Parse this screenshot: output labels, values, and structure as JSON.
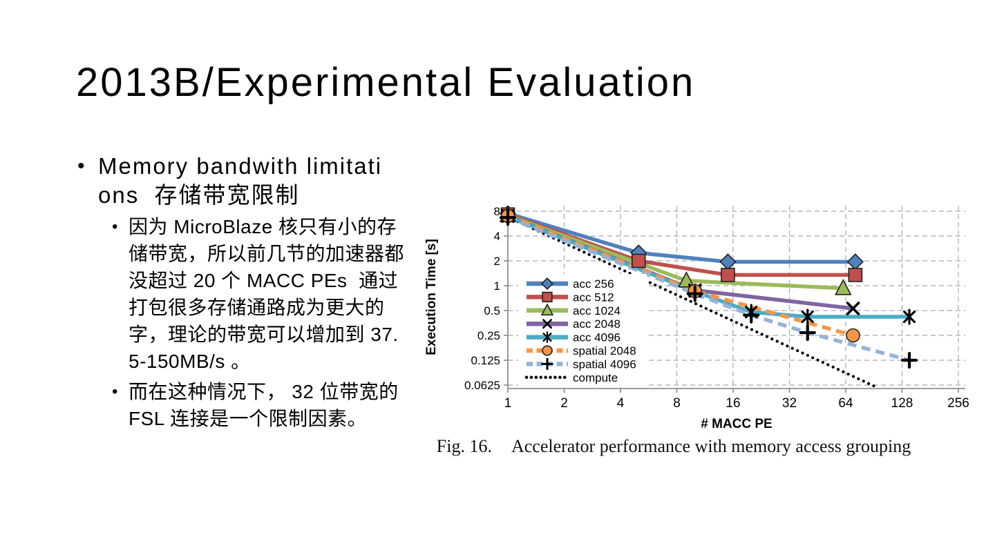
{
  "slide": {
    "title": "2013B/Experimental Evaluation",
    "bullet_char": "•"
  },
  "content": {
    "bullet1_text": "Memory bandwith limitations  存储带宽限制",
    "sub1": "因为 MicroBlaze 核只有小的存储带宽，所以前几节的加速器都没超过 20 个 MACC PEs  通过打包很多存储通路成为更大的字，理论的带宽可以增加到 37.5-150MB/s 。",
    "sub2": "而在这种情况下， 32 位带宽的 FSL 连接是一个限制因素。"
  },
  "figure": {
    "caption_label": "Fig. 16.",
    "caption_text": "Accelerator performance with memory access grouping"
  },
  "chart_data": {
    "type": "line",
    "title": "",
    "xlabel": "# MACC PE",
    "ylabel": "Execution Time [s]",
    "x_scale": "log2",
    "y_scale": "log2",
    "xlim": [
      1,
      256
    ],
    "ylim": [
      0.0625,
      8
    ],
    "grid": "dashed",
    "legend_position": "inside-left",
    "x_ticks": [
      1,
      2,
      4,
      8,
      16,
      32,
      64,
      128,
      256
    ],
    "x_tick_labels": [
      "1",
      "2",
      "4",
      "8",
      "16",
      "32",
      "64",
      "128",
      "256"
    ],
    "y_ticks": [
      8,
      4,
      2,
      1,
      0.5,
      0.25,
      0.125,
      0.0625
    ],
    "y_tick_labels": [
      "8",
      "4",
      "2",
      "1",
      "0.5",
      "0.25",
      "0.125",
      "0.0625"
    ],
    "colors": {
      "acc256": "#4F81BD",
      "acc512": "#C0504D",
      "acc1024": "#9BBB59",
      "acc2048": "#8064A2",
      "acc4096": "#4BACC6",
      "spatial2048": "#F79646",
      "spatial4096": "#95B3D7",
      "compute": "#000000"
    },
    "series": [
      {
        "name": "acc 256",
        "color": "#4F81BD",
        "style": "solid",
        "marker": "diamond",
        "points": [
          [
            1,
            7.5
          ],
          [
            5,
            2.5
          ],
          [
            15,
            1.95
          ],
          [
            72,
            1.95
          ]
        ]
      },
      {
        "name": "acc 512",
        "color": "#C0504D",
        "style": "solid",
        "marker": "square",
        "points": [
          [
            1,
            7.3
          ],
          [
            5,
            2.0
          ],
          [
            15,
            1.35
          ],
          [
            72,
            1.35
          ]
        ]
      },
      {
        "name": "acc 1024",
        "color": "#9BBB59",
        "style": "solid",
        "marker": "triangle",
        "points": [
          [
            1,
            7.1
          ],
          [
            9,
            1.15
          ],
          [
            62,
            0.93
          ]
        ]
      },
      {
        "name": "acc 2048",
        "color": "#8064A2",
        "style": "solid",
        "marker": "x",
        "points": [
          [
            1,
            7.0
          ],
          [
            10,
            0.88
          ],
          [
            70,
            0.53
          ]
        ]
      },
      {
        "name": "acc 4096",
        "color": "#4BACC6",
        "style": "solid",
        "marker": "star",
        "points": [
          [
            1,
            6.9
          ],
          [
            10,
            0.85
          ],
          [
            20,
            0.48
          ],
          [
            40,
            0.42
          ],
          [
            140,
            0.42
          ]
        ]
      },
      {
        "name": "spatial 2048",
        "color": "#F79646",
        "style": "dashed",
        "marker": "circle",
        "points": [
          [
            1,
            7.0
          ],
          [
            10,
            0.86
          ],
          [
            70,
            0.25
          ]
        ]
      },
      {
        "name": "spatial 4096",
        "color": "#95B3D7",
        "style": "dashed",
        "marker": "plus",
        "points": [
          [
            1,
            6.7
          ],
          [
            10,
            0.8
          ],
          [
            20,
            0.44
          ],
          [
            40,
            0.27
          ],
          [
            140,
            0.125
          ]
        ]
      },
      {
        "name": "compute",
        "color": "#000000",
        "style": "dotted",
        "marker": "none",
        "points": [
          [
            1,
            6.8
          ],
          [
            92,
            0.06
          ]
        ]
      }
    ]
  }
}
